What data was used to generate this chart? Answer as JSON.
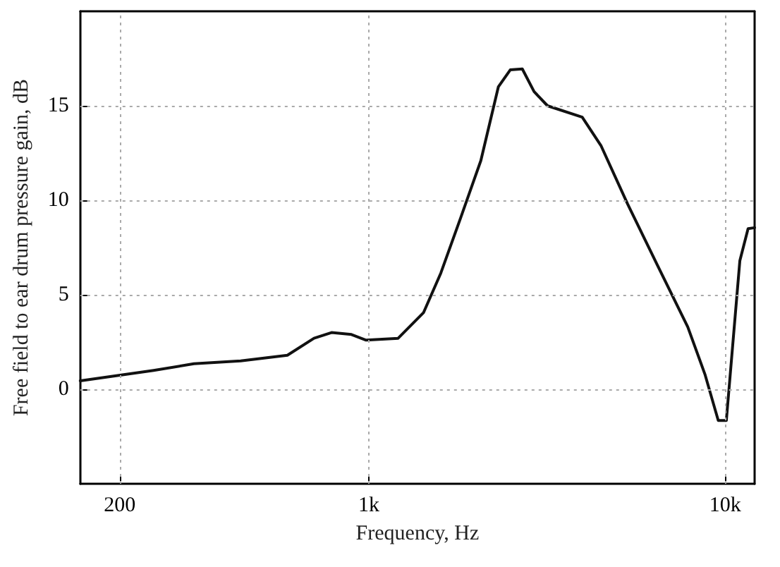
{
  "chart_data": {
    "type": "line",
    "xlabel": "Frequency, Hz",
    "ylabel": "Free field to ear drum pressure gain, dB",
    "log": "x",
    "grid": true,
    "marker": "none",
    "line_style": "solid",
    "xlim": [
      155,
      12100
    ],
    "ylim": [
      -5,
      20
    ],
    "xticks": [
      {
        "value": 200,
        "label": "200"
      },
      {
        "value": 1000,
        "label": "1k"
      },
      {
        "value": 10000,
        "label": "10k"
      }
    ],
    "yticks": [
      0,
      5,
      10,
      15
    ],
    "series": [
      {
        "color": "#111111",
        "x": [
          155,
          249,
          323,
          437,
          591,
          702,
          786,
          894,
          983,
          1209,
          1424,
          1593,
          1813,
          2063,
          2310,
          2495,
          2697,
          2910,
          3174,
          3972,
          4482,
          5327,
          6444,
          7856,
          8776,
          9567,
          10080,
          10999,
          11600,
          12100
        ],
        "values": [
          0.45,
          1.0,
          1.35,
          1.5,
          1.8,
          2.7,
          3.0,
          2.9,
          2.6,
          2.7,
          4.05,
          6.15,
          9.1,
          12.1,
          16.0,
          16.9,
          16.95,
          15.75,
          15.0,
          14.4,
          12.9,
          9.8,
          6.6,
          3.3,
          0.8,
          -1.65,
          -1.65,
          6.8,
          8.5,
          8.55
        ]
      }
    ]
  }
}
